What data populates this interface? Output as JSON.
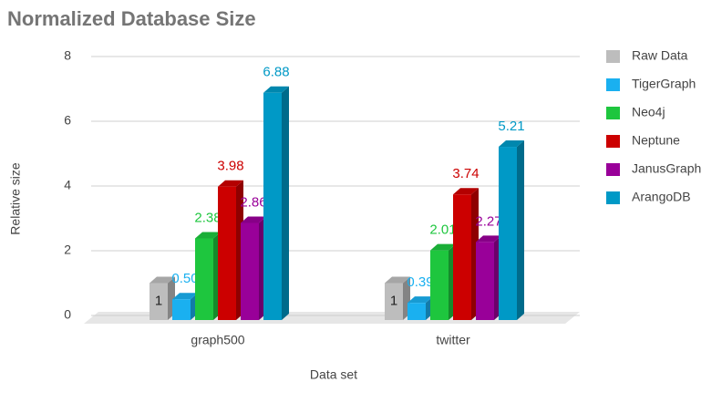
{
  "chart_data": {
    "type": "bar3d",
    "title": "Normalized Database Size",
    "x_label": "Data set",
    "y_label": "Relative size",
    "categories": [
      "graph500",
      "twitter"
    ],
    "series": [
      {
        "name": "Raw Data",
        "color": "#bdbdbd",
        "values": [
          1,
          1
        ],
        "value_labels": [
          "1",
          "1"
        ]
      },
      {
        "name": "TigerGraph",
        "color": "#1ab0f0",
        "values": [
          0.5,
          0.39
        ],
        "value_labels": [
          "0.50",
          "0.39"
        ]
      },
      {
        "name": "Neo4j",
        "color": "#1ec63e",
        "values": [
          2.38,
          2.01
        ],
        "value_labels": [
          "2.38",
          "2.01"
        ]
      },
      {
        "name": "Neptune",
        "color": "#cc0000",
        "values": [
          3.98,
          3.74
        ],
        "value_labels": [
          "3.98",
          "3.74"
        ]
      },
      {
        "name": "JanusGraph",
        "color": "#990099",
        "values": [
          2.86,
          2.27
        ],
        "value_labels": [
          "2.86",
          "2.27"
        ]
      },
      {
        "name": "ArangoDB",
        "color": "#0099c6",
        "values": [
          6.88,
          5.21
        ],
        "value_labels": [
          "6.88",
          "5.21"
        ]
      }
    ],
    "ylim": [
      0,
      8
    ],
    "yticks": [
      0,
      2,
      4,
      6,
      8
    ],
    "grid": true,
    "legend": "right"
  }
}
